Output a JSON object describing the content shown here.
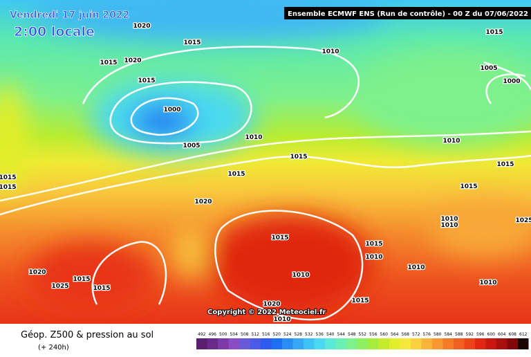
{
  "header": {
    "date": "Vendredi 17 juin 2022",
    "time": "2:00 locale",
    "run": "Ensemble ECMWF ENS  (Run de contrôle)  - 00 Z du 07/06/2022"
  },
  "copyright": "Copyright © 2022 Meteociel.fr",
  "footer": {
    "title": "Géop. Z500 & pression au sol",
    "lead": "(+ 240h)"
  },
  "isobar_labels": [
    "1020",
    "1015",
    "1010",
    "1015",
    "1015",
    "1020",
    "1005",
    "1000",
    "1015",
    "1000",
    "1005",
    "1010",
    "1010",
    "1015",
    "1015",
    "1015",
    "1015",
    "1015",
    "1015",
    "1020",
    "1010",
    "1010",
    "1025",
    "1015",
    "1015",
    "1010",
    "1010",
    "1020",
    "1015",
    "1025",
    "1015",
    "1010",
    "1010",
    "1015",
    "1020",
    "1010"
  ],
  "legend": {
    "labels": [
      492,
      496,
      500,
      504,
      508,
      512,
      516,
      520,
      524,
      528,
      532,
      536,
      540,
      544,
      548,
      552,
      556,
      560,
      564,
      568,
      572,
      576,
      580,
      584,
      588,
      592,
      596,
      600,
      604,
      608,
      612
    ],
    "colors": [
      "#5a1f6e",
      "#6a2a8a",
      "#7c3aa8",
      "#8b4dc4",
      "#6a5ad8",
      "#4c5ae8",
      "#2f5af0",
      "#1f6ff2",
      "#2a8cf5",
      "#37a8f7",
      "#3fc2f5",
      "#4ad9f0",
      "#5ae8d8",
      "#6af0b4",
      "#7ef08c",
      "#8ef060",
      "#a6ec3c",
      "#c4ec2c",
      "#e2ee2c",
      "#f6e83a",
      "#f8d040",
      "#f8b438",
      "#f89830",
      "#f47c28",
      "#f06020",
      "#ec4418",
      "#e02810",
      "#c81810",
      "#a81010",
      "#800808",
      "#1a0404"
    ]
  }
}
